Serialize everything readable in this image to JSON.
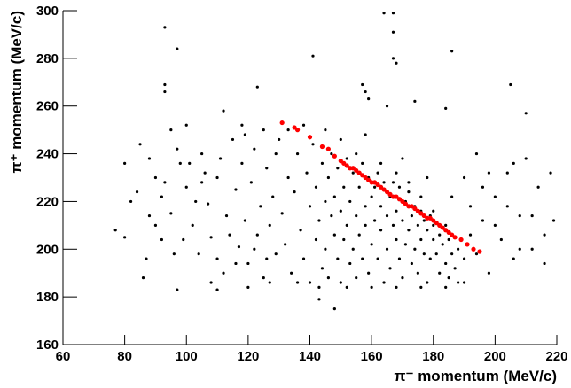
{
  "chart_data": {
    "type": "scatter",
    "x_label": "π⁻ momentum (MeV/c)",
    "y_label": "π⁺ momentum (MeV/c)",
    "xlim": [
      60,
      220
    ],
    "xticks": [
      60,
      80,
      100,
      120,
      140,
      160,
      180,
      200,
      220
    ],
    "ylim": [
      160,
      300
    ],
    "yticks": [
      160,
      180,
      200,
      220,
      240,
      260,
      280,
      300
    ],
    "series": [
      {
        "color": "#000000",
        "x": [
          93,
          97,
          93,
          93,
          141,
          164,
          167,
          167,
          167,
          168,
          123,
          157,
          158,
          159,
          165,
          174,
          184,
          205,
          210,
          143,
          148,
          97,
          110,
          219,
          77,
          80,
          186,
          85,
          88,
          90,
          92,
          95,
          98,
          100,
          102,
          104,
          105,
          107,
          108,
          110,
          112,
          113,
          115,
          116,
          117,
          118,
          119,
          120,
          121,
          122,
          123,
          124,
          125,
          126,
          127,
          128,
          129,
          130,
          131,
          132,
          133,
          134,
          135,
          136,
          137,
          138,
          139,
          140,
          140,
          141,
          142,
          142,
          143,
          144,
          144,
          145,
          145,
          146,
          146,
          147,
          147,
          148,
          148,
          149,
          149,
          150,
          150,
          151,
          151,
          152,
          152,
          153,
          153,
          154,
          154,
          155,
          155,
          156,
          156,
          157,
          157,
          158,
          158,
          159,
          159,
          160,
          160,
          161,
          161,
          162,
          162,
          163,
          163,
          164,
          164,
          165,
          165,
          166,
          166,
          167,
          167,
          168,
          168,
          169,
          169,
          170,
          170,
          171,
          171,
          172,
          172,
          173,
          173,
          174,
          174,
          175,
          175,
          176,
          176,
          177,
          177,
          178,
          178,
          179,
          179,
          180,
          180,
          181,
          182,
          182,
          183,
          184,
          185,
          185,
          186,
          187,
          188,
          190,
          190,
          192,
          194,
          196,
          198,
          200,
          202,
          204,
          206,
          208,
          210,
          212,
          214,
          216,
          218,
          95,
          100,
          108,
          112,
          118,
          122,
          126,
          133,
          138,
          103,
          99,
          90,
          87,
          86,
          93,
          97,
          106,
          111,
          114,
          119,
          127,
          136,
          143,
          152,
          160,
          168,
          176,
          184,
          188,
          158,
          150,
          145,
          155,
          163,
          168,
          172,
          176,
          180,
          184,
          170,
          178,
          186,
          192,
          196,
          200,
          204,
          208,
          212,
          216,
          206,
          198,
          194,
          190,
          125,
          129,
          116,
          120,
          110,
          105,
          101,
          96,
          92,
          88,
          84,
          82,
          80
        ],
        "values": [
          293,
          284,
          269,
          266,
          281,
          299,
          299,
          291,
          280,
          278,
          268,
          269,
          266,
          263,
          260,
          262,
          259,
          269,
          257,
          179,
          175,
          183,
          183,
          212,
          208,
          205,
          283,
          244,
          238,
          230,
          222,
          215,
          236,
          226,
          210,
          198,
          240,
          219,
          205,
          230,
          190,
          214,
          246,
          225,
          201,
          236,
          212,
          194,
          228,
          242,
          206,
          218,
          188,
          234,
          210,
          222,
          198,
          246,
          215,
          202,
          230,
          190,
          224,
          240,
          208,
          196,
          232,
          218,
          186,
          244,
          226,
          204,
          212,
          236,
          192,
          220,
          200,
          230,
          188,
          214,
          240,
          206,
          222,
          196,
          234,
          216,
          186,
          226,
          204,
          238,
          210,
          194,
          220,
          232,
          200,
          214,
          188,
          226,
          206,
          236,
          196,
          218,
          210,
          230,
          190,
          222,
          202,
          212,
          226,
          196,
          232,
          208,
          218,
          186,
          228,
          214,
          200,
          222,
          192,
          210,
          228,
          204,
          216,
          196,
          226,
          212,
          188,
          220,
          202,
          208,
          224,
          194,
          214,
          218,
          200,
          210,
          190,
          216,
          204,
          198,
          212,
          208,
          186,
          214,
          196,
          204,
          210,
          198,
          206,
          190,
          202,
          194,
          204,
          188,
          198,
          192,
          200,
          196,
          186,
          206,
          198,
          212,
          190,
          222,
          204,
          232,
          196,
          214,
          238,
          200,
          226,
          206,
          232,
          250,
          252,
          186,
          258,
          252,
          200,
          196,
          250,
          252,
          220,
          204,
          210,
          196,
          188,
          228,
          242,
          232,
          238,
          206,
          248,
          186,
          186,
          184,
          184,
          184,
          184,
          184,
          184,
          186,
          248,
          246,
          250,
          240,
          236,
          232,
          228,
          222,
          216,
          210,
          238,
          230,
          222,
          218,
          226,
          210,
          218,
          200,
          214,
          194,
          236,
          232,
          240,
          230,
          250,
          240,
          194,
          184,
          196,
          228,
          236,
          198,
          204,
          214,
          224,
          220,
          236
        ]
      },
      {
        "color": "#ff0000",
        "x": [
          131,
          135,
          136,
          140,
          144,
          146,
          148,
          150,
          151,
          152,
          153,
          154,
          155,
          156,
          157,
          158,
          159,
          160,
          161,
          162,
          163,
          164,
          165,
          166,
          167,
          168,
          169,
          170,
          171,
          172,
          173,
          174,
          175,
          176,
          177,
          178,
          179,
          180,
          181,
          182,
          183,
          184,
          185,
          186,
          187,
          189,
          191,
          193,
          195
        ],
        "values": [
          253,
          251,
          250,
          247,
          243,
          242,
          239,
          237,
          236,
          235,
          234,
          234,
          233,
          232,
          231,
          230,
          229,
          228,
          228,
          227,
          226,
          225,
          224,
          223,
          222,
          222,
          221,
          220,
          219,
          218,
          218,
          217,
          216,
          215,
          214,
          213,
          213,
          212,
          211,
          210,
          209,
          208,
          207,
          206,
          205,
          204,
          202,
          200,
          199
        ]
      }
    ]
  }
}
